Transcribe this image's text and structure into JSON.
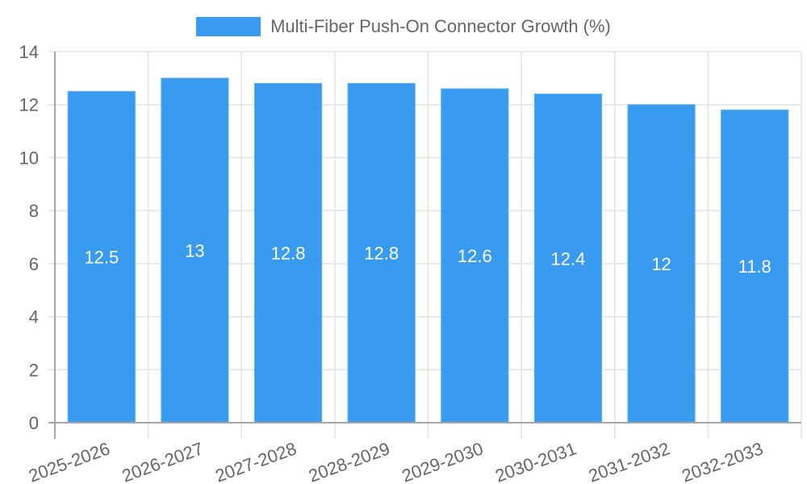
{
  "legend": {
    "label": "Multi-Fiber Push-On Connector Growth (%)",
    "color": "#389BEF"
  },
  "colors": {
    "bar": "#389BEF",
    "bar_border": "#5FB0F2",
    "grid": "#E3E3E3",
    "axis": "#A6A6A6",
    "tick_text": "#666666",
    "data_label": "#FFFFFF"
  },
  "chart_data": {
    "type": "bar",
    "title": "",
    "xlabel": "",
    "ylabel": "",
    "categories": [
      "2025-2026",
      "2026-2027",
      "2027-2028",
      "2028-2029",
      "2029-2030",
      "2030-2031",
      "2031-2032",
      "2032-2033"
    ],
    "series": [
      {
        "name": "Multi-Fiber Push-On Connector Growth (%)",
        "values": [
          12.5,
          13,
          12.8,
          12.8,
          12.6,
          12.4,
          12,
          11.8
        ]
      }
    ],
    "ylim": [
      0,
      14
    ],
    "yticks": [
      0,
      2,
      4,
      6,
      8,
      10,
      12,
      14
    ],
    "grid": true,
    "legend_position": "top",
    "data_labels": [
      "12.5",
      "13",
      "12.8",
      "12.8",
      "12.6",
      "12.4",
      "12",
      "11.8"
    ],
    "x_tick_rotation": -20
  }
}
